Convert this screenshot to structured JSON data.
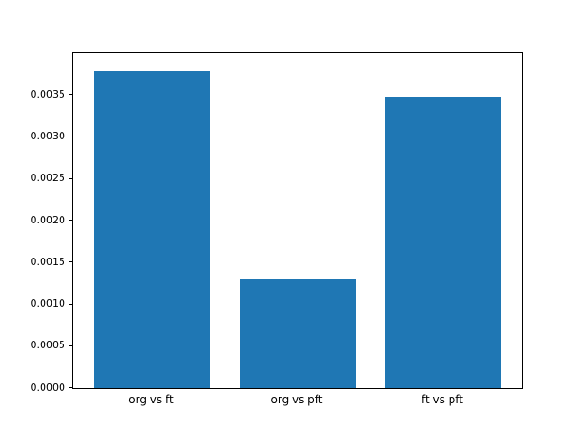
{
  "chart_data": {
    "type": "bar",
    "categories": [
      "org vs ft",
      "org vs pft",
      "ft vs pft"
    ],
    "values": [
      0.0038,
      0.0013,
      0.00348
    ],
    "title": "",
    "xlabel": "",
    "ylabel": "",
    "ylim": [
      0.0,
      0.004
    ],
    "yticks": [
      0.0,
      0.0005,
      0.001,
      0.0015,
      0.002,
      0.0025,
      0.003,
      0.0035
    ],
    "ytick_labels": [
      "0.0000",
      "0.0005",
      "0.0010",
      "0.0015",
      "0.0020",
      "0.0025",
      "0.0030",
      "0.0035"
    ],
    "bar_color": "#1f77b4",
    "grid": false,
    "legend": false
  }
}
